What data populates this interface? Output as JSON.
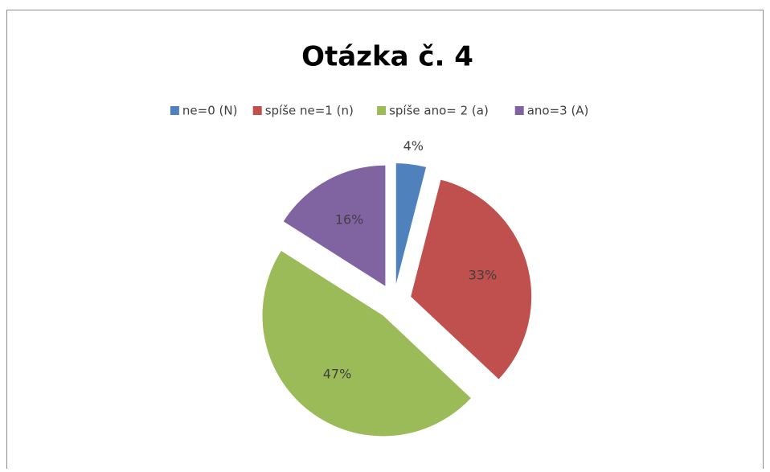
{
  "chart_data": {
    "type": "pie",
    "title": "Otázka č. 4",
    "categories": [
      "ne=0 (N)",
      "spíše ne=1 (n)",
      "spíše ano= 2 (a)",
      "ano=3 (A)"
    ],
    "values": [
      4,
      33,
      47,
      16
    ],
    "value_labels": [
      "4%",
      "33%",
      "47%",
      "16%"
    ],
    "colors": [
      "#4f81bd",
      "#c0504d",
      "#9bbb59",
      "#8064a2"
    ],
    "legend": "top"
  }
}
